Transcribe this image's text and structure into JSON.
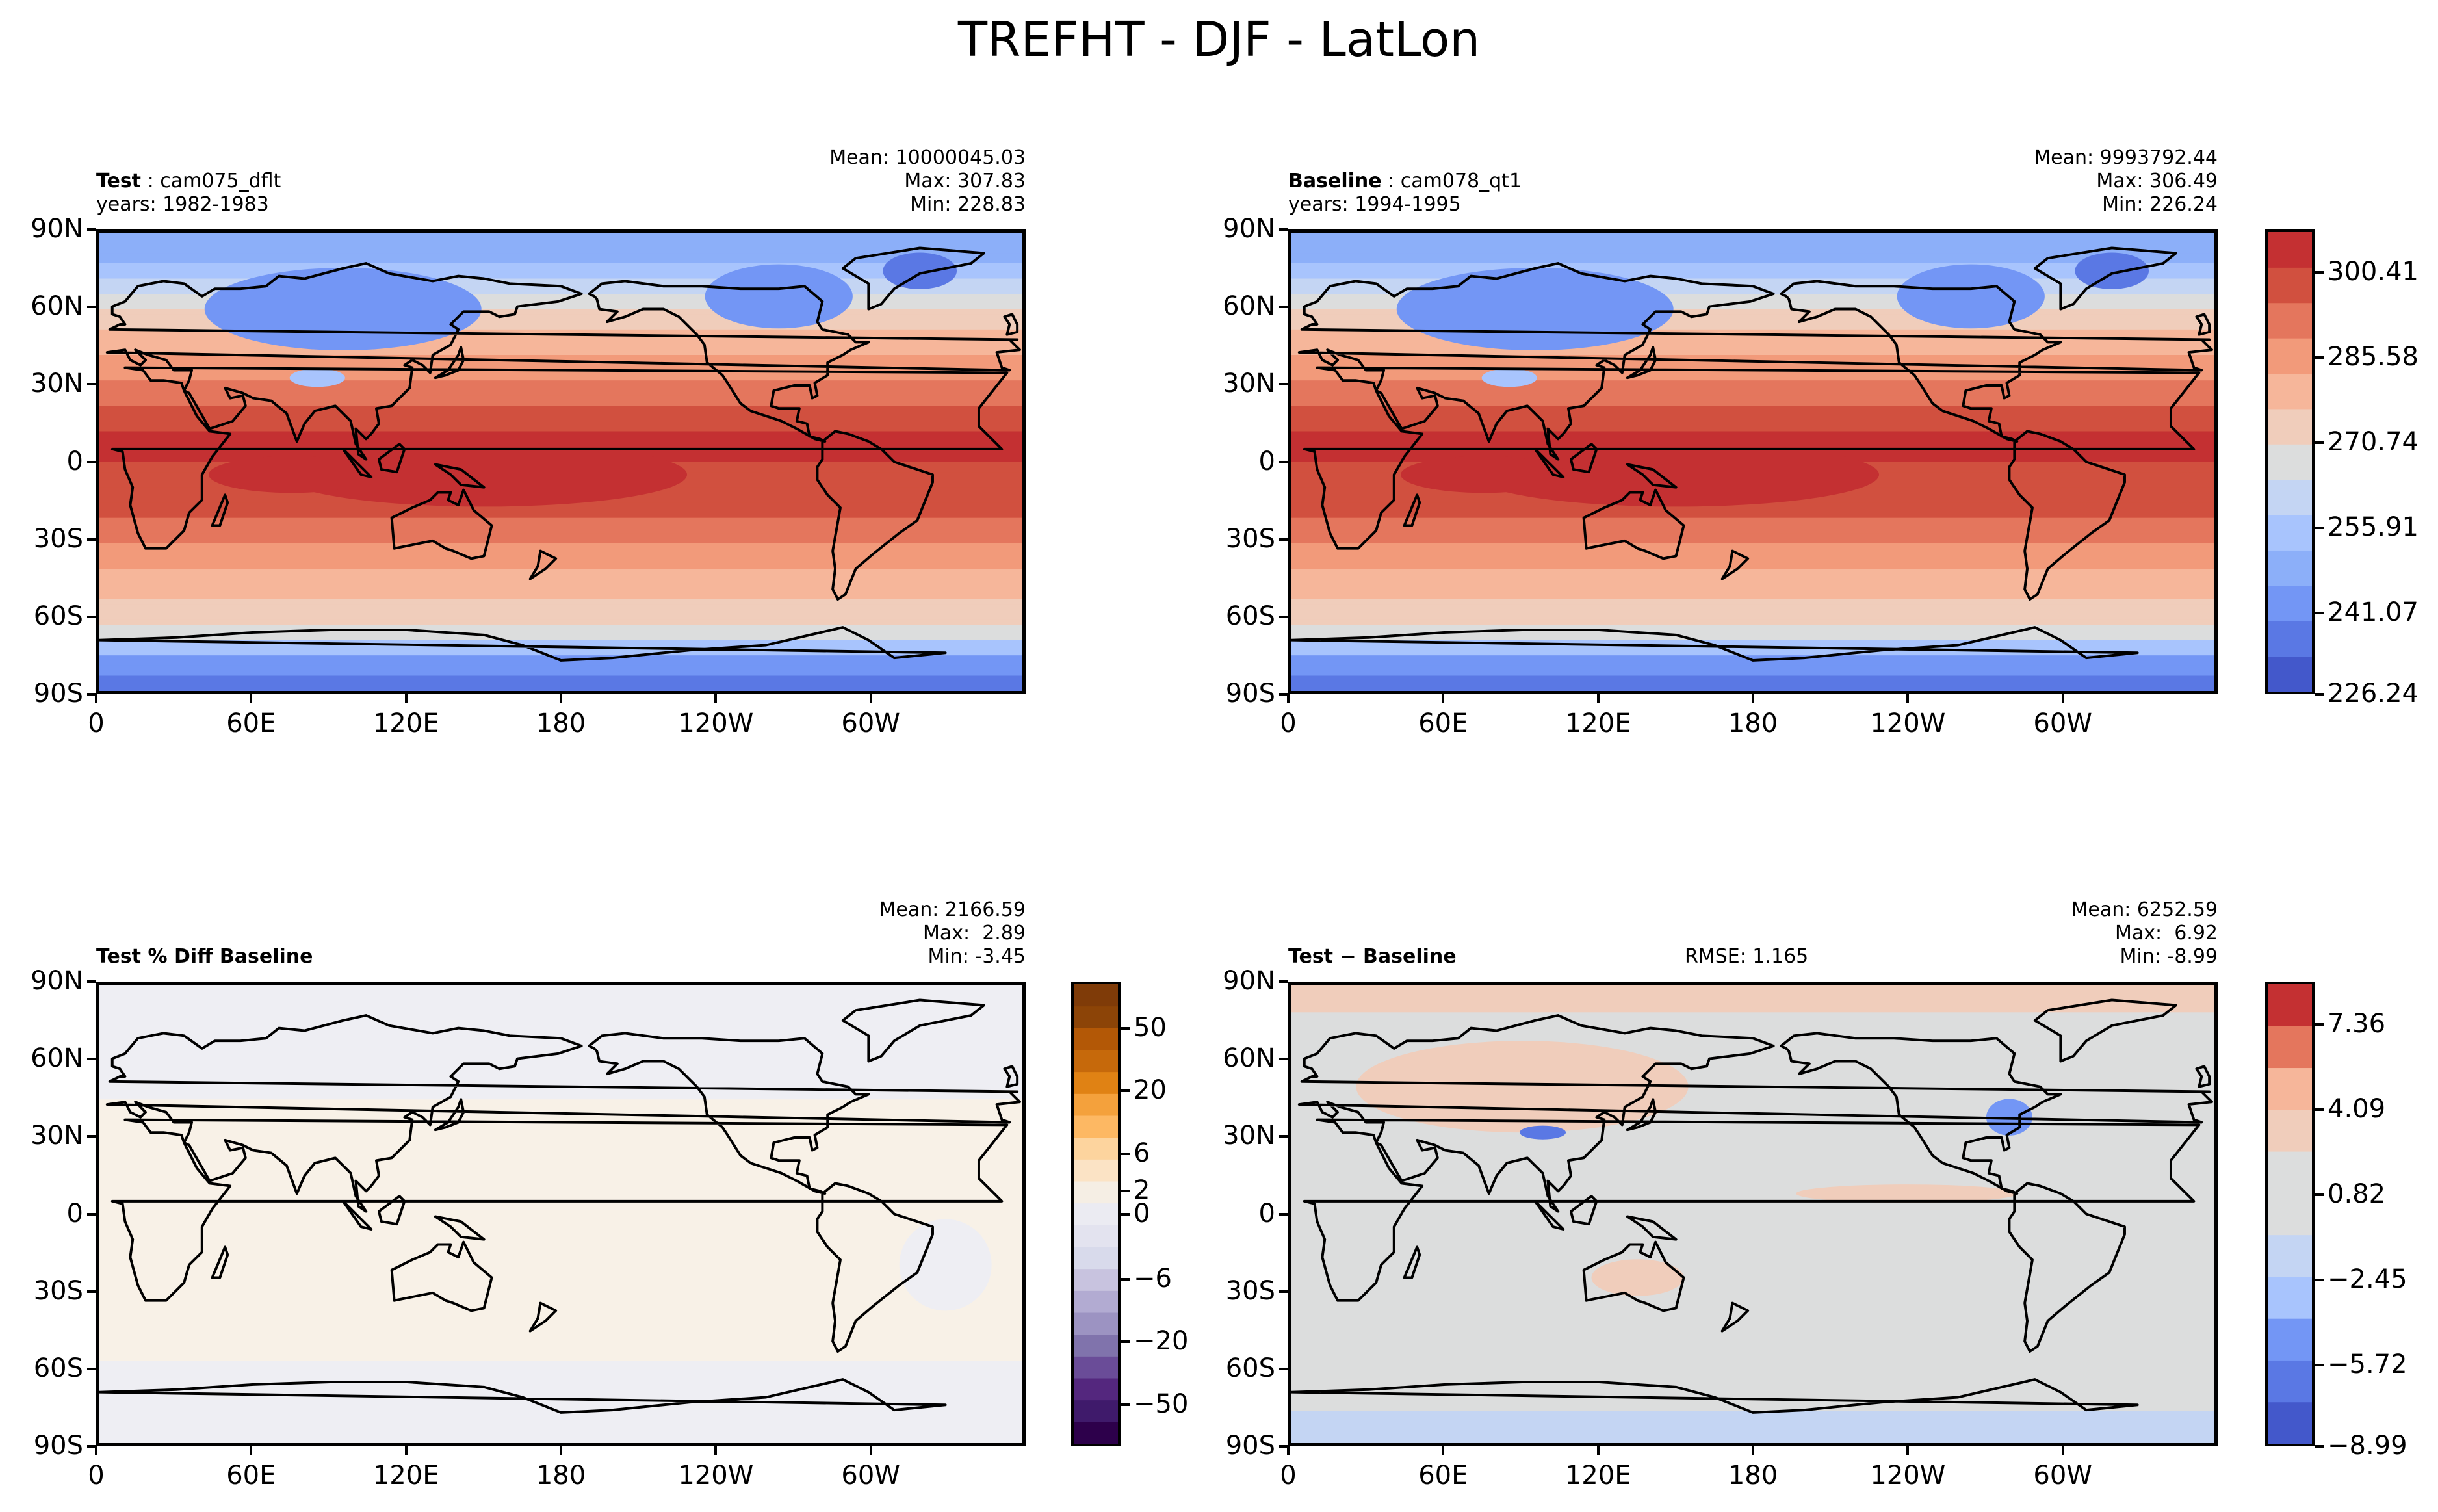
{
  "suptitle": "TREFHT - DJF - LatLon",
  "lat_ticks": [
    "90N",
    "60N",
    "30N",
    "0",
    "30S",
    "60S",
    "90S"
  ],
  "lon_ticks": [
    "0",
    "60E",
    "120E",
    "180",
    "120W",
    "60W"
  ],
  "panels": [
    {
      "id": "test",
      "title_bold": "Test",
      "title_rest": "cam075_dflt",
      "years": "years: 1982-1983",
      "mean": "Mean: 10000045.03",
      "max": "Max: 307.83",
      "min": "Min: 228.83",
      "rmse": "",
      "palette": "coolwarm"
    },
    {
      "id": "baseline",
      "title_bold": "Baseline",
      "title_rest": "cam078_qt1",
      "years": "years: 1994-1995",
      "mean": "Mean: 9993792.44",
      "max": "Max: 306.49",
      "min": "Min: 226.24",
      "rmse": "",
      "palette": "coolwarm"
    },
    {
      "id": "pctdiff",
      "title_bold": "Test % Diff Baseline",
      "title_rest": "",
      "years": "",
      "mean": "Mean: 2166.59",
      "max": "Max:  2.89",
      "min": "Min: -3.45",
      "rmse": "",
      "palette": "puor"
    },
    {
      "id": "diff",
      "title_bold": "Test − Baseline",
      "title_rest": "",
      "years": "",
      "mean": "Mean: 6252.59",
      "max": "Max:  6.92",
      "min": "Min: -8.99",
      "rmse": "RMSE: 1.165",
      "palette": "diffblue"
    }
  ],
  "colorbars": {
    "main": {
      "labels": [
        "300.41",
        "285.58",
        "270.74",
        "255.91",
        "241.07",
        "226.24"
      ],
      "colors": [
        "#4358cb",
        "#5a78e4",
        "#7396f5",
        "#8caff9",
        "#a8c4fd",
        "#c4d5f3",
        "#dcdddd",
        "#f0cdbb",
        "#f6b69a",
        "#f29a7a",
        "#e4765d",
        "#d1503f",
        "#c43032"
      ]
    },
    "pctdiff": {
      "labels": [
        "50",
        "20",
        "6",
        "2",
        "0",
        "−6",
        "−20",
        "−50"
      ],
      "colors": [
        "#2d004b",
        "#3f1a6b",
        "#54277e",
        "#6a4c98",
        "#8073ac",
        "#9c93c2",
        "#b2abd2",
        "#c8c3df",
        "#d8daeb",
        "#e3e3ef",
        "#ebebf2",
        "#f5eee4",
        "#fbe3c5",
        "#fdd49e",
        "#fdb863",
        "#f4a13c",
        "#e08214",
        "#c6690b",
        "#b35806",
        "#8c4407",
        "#7f3b08"
      ],
      "ticks_note": "0"
    },
    "diff": {
      "labels": [
        "7.36",
        "4.09",
        "0.82",
        "−2.45",
        "−5.72",
        "−8.99"
      ],
      "colors": [
        "#4358cb",
        "#5a78e4",
        "#7396f5",
        "#a8c4fd",
        "#c4d5f3",
        "#dcdddd",
        "#dcdddd",
        "#f0cdbb",
        "#f6b69a",
        "#e4765d",
        "#c43032"
      ]
    }
  },
  "chart_data": [
    {
      "type": "heatmap",
      "title": "Test: cam075_dflt",
      "variable": "TREFHT",
      "season": "DJF",
      "x_range": [
        0,
        360
      ],
      "y_range": [
        -90,
        90
      ],
      "stats": {
        "mean": 10000045.03,
        "max": 307.83,
        "min": 228.83
      },
      "zlim": [
        226.24,
        307.83
      ]
    },
    {
      "type": "heatmap",
      "title": "Baseline: cam078_qt1",
      "stats": {
        "mean": 9993792.44,
        "max": 306.49,
        "min": 226.24
      },
      "zlim": [
        226.24,
        307.83
      ]
    },
    {
      "type": "heatmap",
      "title": "Test % Diff Baseline",
      "stats": {
        "mean": 2166.59,
        "max": 2.89,
        "min": -3.45
      },
      "colorbar_levels": [
        -50,
        -20,
        -6,
        0,
        6,
        20,
        50
      ]
    },
    {
      "type": "heatmap",
      "title": "Test - Baseline",
      "stats": {
        "mean": 6252.59,
        "max": 6.92,
        "min": -8.99,
        "rmse": 1.165
      },
      "colorbar_ticks": [
        -8.99,
        -5.72,
        -2.45,
        0.82,
        4.09,
        7.36
      ]
    }
  ]
}
